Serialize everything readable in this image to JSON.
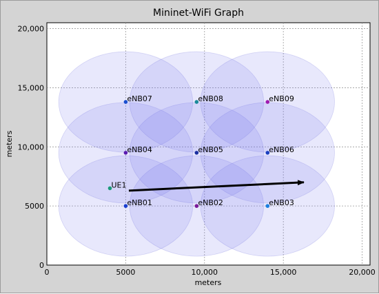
{
  "chart_data": {
    "type": "scatter",
    "title": "Mininet-WiFi Graph",
    "xlabel": "meters",
    "ylabel": "meters",
    "xlim": [
      0,
      20500
    ],
    "ylim": [
      0,
      20500
    ],
    "xticks": [
      0,
      5000,
      10000,
      15000,
      20000
    ],
    "yticks": [
      0,
      5000,
      10000,
      15000,
      20000
    ],
    "xtick_labels": [
      "0",
      "5000",
      "10,000",
      "15,000",
      "20,000"
    ],
    "ytick_labels": [
      "0",
      "5000",
      "10,000",
      "15,000",
      "20,000"
    ],
    "grid": true,
    "coverage_radius": 4250,
    "points": [
      {
        "label": "eNB01",
        "x": 5000,
        "y": 5000,
        "color": "#1a3fd0"
      },
      {
        "label": "eNB02",
        "x": 9500,
        "y": 5000,
        "color": "#7a1a9a"
      },
      {
        "label": "eNB03",
        "x": 14000,
        "y": 5000,
        "color": "#1a7fe0"
      },
      {
        "label": "eNB04",
        "x": 5000,
        "y": 9500,
        "color": "#5a1ab0"
      },
      {
        "label": "eNB05",
        "x": 9500,
        "y": 9500,
        "color": "#1a2fa0"
      },
      {
        "label": "eNB06",
        "x": 14000,
        "y": 9500,
        "color": "#1a3fc0"
      },
      {
        "label": "eNB07",
        "x": 5000,
        "y": 13800,
        "color": "#1a4fd0"
      },
      {
        "label": "eNB08",
        "x": 9500,
        "y": 13800,
        "color": "#1a8a9a"
      },
      {
        "label": "eNB09",
        "x": 14000,
        "y": 13800,
        "color": "#a01ab0"
      },
      {
        "label": "UE1",
        "x": 4000,
        "y": 6500,
        "color": "#1a9a7a"
      }
    ],
    "arrow": {
      "from": [
        5200,
        6300
      ],
      "to": [
        16300,
        7000
      ]
    }
  }
}
